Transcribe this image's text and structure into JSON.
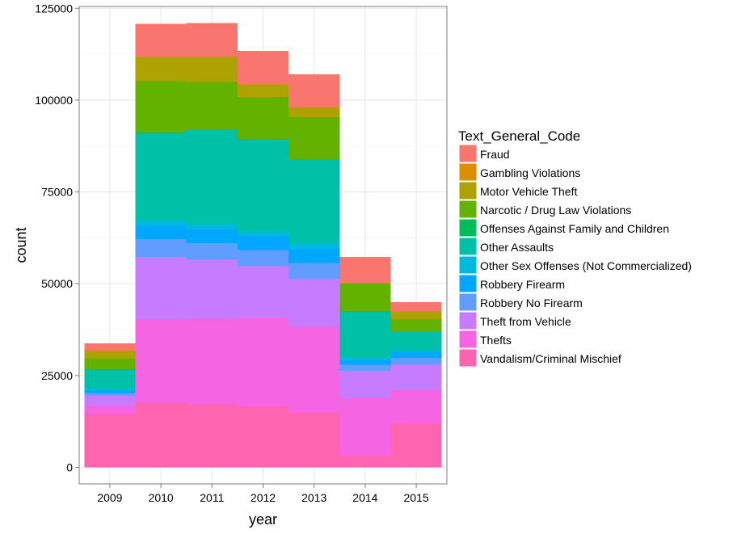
{
  "chart_data": {
    "type": "bar",
    "stacked": true,
    "xlabel": "year",
    "ylabel": "count",
    "categories": [
      "2009",
      "2010",
      "2011",
      "2012",
      "2013",
      "2014",
      "2015"
    ],
    "y_ticks": [
      0,
      25000,
      50000,
      75000,
      100000,
      125000
    ],
    "ylim": [
      -4500,
      125500
    ],
    "grid": true,
    "legend": {
      "title": "Text_General_Code",
      "position": "right"
    },
    "series": [
      {
        "name": "Fraud",
        "color": "#F8766D",
        "values": [
          2000,
          9000,
          9200,
          9100,
          9000,
          7000,
          2500
        ]
      },
      {
        "name": "Gambling Violations",
        "color": "#DB8E00",
        "values": [
          100,
          100,
          100,
          100,
          100,
          100,
          100
        ]
      },
      {
        "name": "Motor Vehicle Theft",
        "color": "#AEA200",
        "values": [
          2000,
          6500,
          6800,
          3300,
          2500,
          200,
          2000
        ]
      },
      {
        "name": "Narcotic / Drug Law Violations",
        "color": "#64B200",
        "values": [
          3000,
          14000,
          13000,
          11500,
          11500,
          7500,
          3500
        ]
      },
      {
        "name": "Offenses Against Family and Children",
        "color": "#00BD5C",
        "values": [
          100,
          100,
          100,
          100,
          100,
          100,
          100
        ]
      },
      {
        "name": "Other Assaults",
        "color": "#00C1A7",
        "values": [
          5300,
          24000,
          25600,
          25100,
          22800,
          12400,
          5000
        ]
      },
      {
        "name": "Other Sex Offenses (Not Commercialized)",
        "color": "#00BADE",
        "values": [
          400,
          1200,
          1400,
          1300,
          1500,
          800,
          400
        ]
      },
      {
        "name": "Robbery Firearm",
        "color": "#00A6FF",
        "values": [
          700,
          3800,
          3800,
          3700,
          3800,
          1200,
          1600
        ]
      },
      {
        "name": "Robbery No Firearm",
        "color": "#619CFF",
        "values": [
          600,
          4800,
          4500,
          4400,
          4300,
          1700,
          1800
        ]
      },
      {
        "name": "Theft from Vehicle",
        "color": "#C77CFF",
        "values": [
          2900,
          16900,
          16000,
          14000,
          13100,
          7500,
          7000
        ]
      },
      {
        "name": "Thefts",
        "color": "#F564E3",
        "values": [
          2200,
          22800,
          23300,
          24300,
          23400,
          15700,
          9000
        ]
      },
      {
        "name": "Vandalism/Criminal Mischief",
        "color": "#FF64B0",
        "values": [
          14500,
          17600,
          17200,
          16500,
          14900,
          3100,
          12000
        ]
      }
    ]
  }
}
